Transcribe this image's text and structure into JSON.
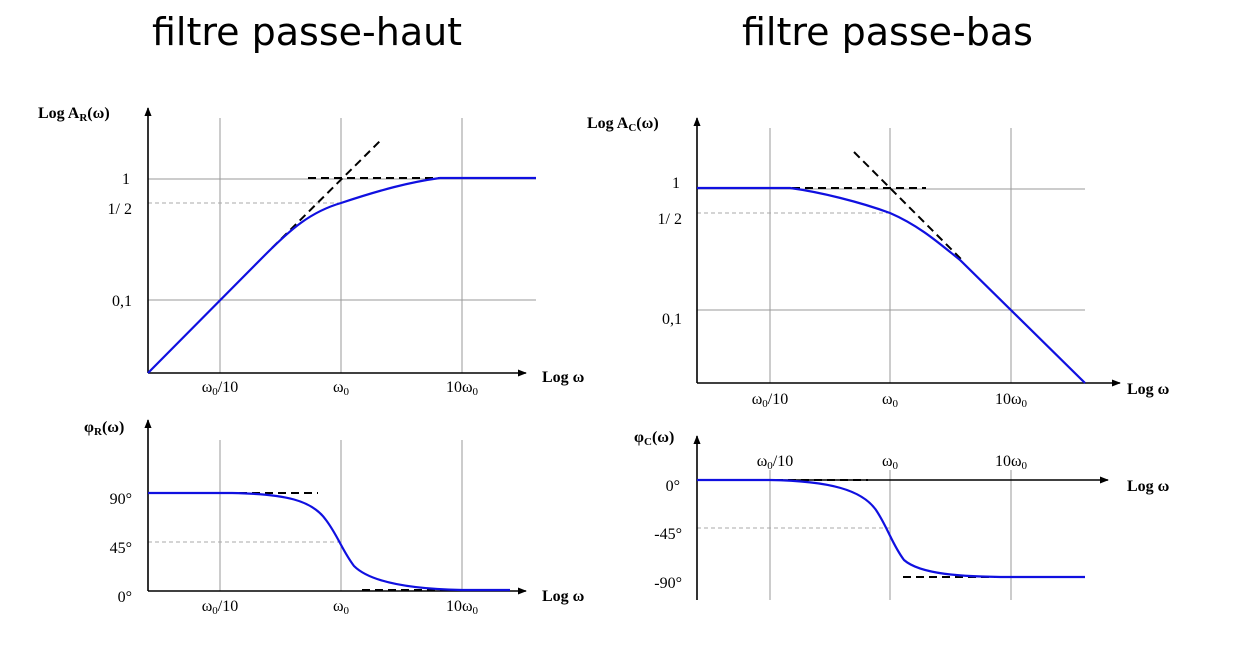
{
  "titles": {
    "high_pass": "filtre passe-haut",
    "low_pass": "filtre passe-bas"
  },
  "x_axis": {
    "label": "Log ω",
    "ticks": [
      "ω",
      "ω",
      "10ω"
    ],
    "tick_suffix": [
      "/10",
      "",
      ""
    ],
    "tick_subscript": "0"
  },
  "high_pass": {
    "gain": {
      "y_label_prefix": "Log  A",
      "y_label_sub": "R",
      "y_label_suffix": "(ω)",
      "y_ticks": [
        "1",
        "1/   2",
        "0,1"
      ]
    },
    "phase": {
      "y_label_prefix": "φ",
      "y_label_sub": "R",
      "y_label_suffix": "(ω)",
      "y_ticks": [
        "90°",
        "45°",
        "0°"
      ]
    }
  },
  "low_pass": {
    "gain": {
      "y_label_prefix": "Log  A",
      "y_label_sub": "C",
      "y_label_suffix": "(ω)",
      "y_ticks": [
        "1",
        "1/   2",
        "0,1"
      ]
    },
    "phase": {
      "y_label_prefix": "φ",
      "y_label_sub": "C",
      "y_label_suffix": "(ω)",
      "y_ticks": [
        "0°",
        "-45°",
        "-90°"
      ]
    }
  },
  "colors": {
    "curve": "#1010e0",
    "grid": "#9a9a9a",
    "asymptote": "#000000"
  }
}
